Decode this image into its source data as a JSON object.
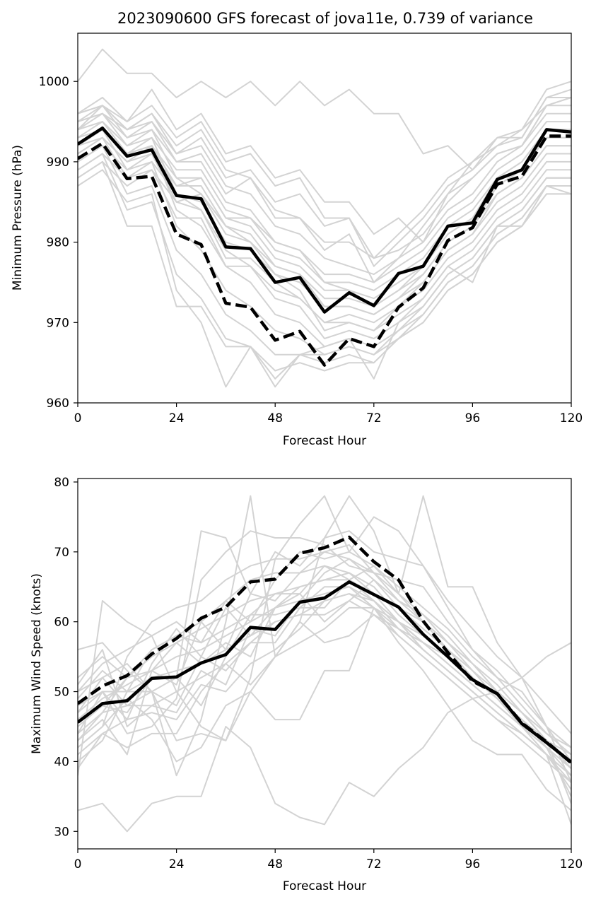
{
  "chart_data": [
    {
      "type": "line",
      "title": "2023090600 GFS forecast of jova11e, 0.739 of variance",
      "xlabel": "Forecast Hour",
      "ylabel": "Minimum Pressure (hPa)",
      "xlim": [
        0,
        120
      ],
      "ylim": [
        960,
        1006
      ],
      "xticks": [
        0,
        24,
        48,
        72,
        96,
        120
      ],
      "yticks": [
        960,
        970,
        980,
        990,
        1000
      ],
      "x": [
        0,
        6,
        12,
        18,
        24,
        30,
        36,
        42,
        48,
        54,
        60,
        66,
        72,
        78,
        84,
        90,
        96,
        102,
        108,
        114,
        120
      ],
      "ensemble_color": "#d3d3d3",
      "ensemble_members": [
        [
          1000,
          1004,
          1001,
          1001,
          998,
          1000,
          998,
          1000,
          997,
          1000,
          997,
          999,
          996,
          996,
          991,
          992,
          989,
          993,
          994,
          999,
          1000
        ],
        [
          996,
          998,
          995,
          999,
          994,
          996,
          991,
          992,
          988,
          989,
          985,
          985,
          981,
          983,
          980,
          986,
          990,
          993,
          993,
          998,
          998
        ],
        [
          995,
          997,
          994,
          996,
          992,
          994,
          989,
          988,
          984,
          983,
          980,
          980,
          978,
          979,
          981,
          985,
          988,
          991,
          992,
          997,
          997
        ],
        [
          994,
          996,
          993,
          995,
          991,
          992,
          987,
          986,
          982,
          981,
          978,
          977,
          976,
          978,
          980,
          984,
          986,
          990,
          992,
          996,
          996
        ],
        [
          993,
          995,
          992,
          994,
          990,
          990,
          985,
          984,
          980,
          979,
          976,
          976,
          975,
          977,
          979,
          983,
          985,
          989,
          991,
          995,
          995
        ],
        [
          992,
          994,
          991,
          993,
          989,
          989,
          984,
          983,
          979,
          978,
          975,
          975,
          974,
          976,
          978,
          982,
          984,
          988,
          990,
          994,
          994
        ],
        [
          991,
          993,
          990,
          992,
          988,
          988,
          983,
          982,
          978,
          977,
          974,
          974,
          973,
          975,
          977,
          981,
          983,
          987,
          989,
          993,
          993
        ],
        [
          990,
          992,
          989,
          991,
          987,
          987,
          982,
          981,
          977,
          976,
          973,
          973,
          972,
          974,
          976,
          980,
          982,
          986,
          988,
          992,
          992
        ],
        [
          989,
          991,
          988,
          990,
          986,
          985,
          980,
          979,
          976,
          975,
          972,
          972,
          971,
          973,
          975,
          979,
          981,
          985,
          987,
          991,
          991
        ],
        [
          988,
          990,
          987,
          989,
          985,
          984,
          978,
          978,
          975,
          973,
          970,
          971,
          970,
          972,
          974,
          978,
          980,
          984,
          986,
          990,
          990
        ],
        [
          996,
          997,
          993,
          994,
          988,
          986,
          982,
          980,
          976,
          974,
          969,
          970,
          969,
          971,
          973,
          977,
          979,
          983,
          985,
          989,
          989
        ],
        [
          995,
          996,
          992,
          993,
          986,
          984,
          979,
          977,
          973,
          972,
          968,
          969,
          968,
          970,
          972,
          976,
          978,
          982,
          984,
          988,
          988
        ],
        [
          994,
          995,
          991,
          992,
          984,
          982,
          977,
          975,
          971,
          970,
          967,
          968,
          967,
          969,
          971,
          975,
          977,
          981,
          983,
          987,
          987
        ],
        [
          993,
          994,
          989,
          990,
          982,
          979,
          974,
          972,
          969,
          968,
          966,
          967,
          966,
          968,
          970,
          974,
          976,
          980,
          982,
          986,
          986
        ],
        [
          990,
          992,
          986,
          987,
          979,
          976,
          971,
          969,
          966,
          966,
          965,
          966,
          965,
          968,
          970,
          974,
          976,
          980,
          982,
          986,
          986
        ],
        [
          989,
          991,
          984,
          985,
          976,
          973,
          968,
          967,
          964,
          965,
          964,
          965,
          965,
          968,
          971,
          975,
          977,
          981,
          983,
          987,
          987
        ],
        [
          988,
          990,
          982,
          982,
          972,
          972,
          967,
          967,
          963,
          966,
          966,
          967,
          966,
          969,
          972,
          976,
          978,
          982,
          984,
          988,
          988
        ],
        [
          987,
          989,
          985,
          986,
          974,
          970,
          962,
          967,
          962,
          966,
          967,
          968,
          963,
          970,
          973,
          977,
          975,
          982,
          982,
          987,
          986
        ],
        [
          996,
          997,
          994,
          995,
          990,
          991,
          986,
          988,
          983,
          983,
          979,
          981,
          975,
          978,
          982,
          986,
          988,
          991,
          992,
          997,
          998
        ],
        [
          995,
          996,
          994,
          996,
          991,
          993,
          988,
          989,
          985,
          986,
          982,
          983,
          977,
          980,
          983,
          987,
          989,
          992,
          993,
          998,
          999
        ],
        [
          994,
          997,
          995,
          997,
          993,
          995,
          990,
          991,
          987,
          988,
          983,
          983,
          978,
          981,
          984,
          988,
          990,
          992,
          994,
          997,
          998
        ],
        [
          992,
          994,
          991,
          992,
          987,
          988,
          983,
          983,
          980,
          979,
          975,
          974,
          972,
          974,
          977,
          981,
          983,
          988,
          990,
          994,
          994
        ],
        [
          991,
          993,
          988,
          989,
          983,
          983,
          977,
          977,
          974,
          973,
          970,
          970,
          969,
          972,
          975,
          979,
          981,
          986,
          988,
          992,
          992
        ],
        [
          992,
          993,
          990,
          991,
          985,
          986,
          981,
          980,
          977,
          976,
          972,
          972,
          971,
          973,
          976,
          980,
          982,
          987,
          989,
          993,
          993
        ]
      ],
      "series": [
        {
          "name": "",
          "style": "solid",
          "values": [
            992.2,
            994.2,
            990.7,
            991.5,
            985.8,
            985.4,
            979.4,
            979.2,
            975.0,
            975.6,
            971.3,
            973.7,
            972.1,
            976.1,
            977.0,
            982.0,
            982.4,
            987.8,
            989.0,
            994.0,
            993.7
          ]
        },
        {
          "name": "",
          "style": "dashed",
          "values": [
            990.4,
            992.3,
            987.9,
            988.2,
            981.0,
            979.7,
            972.4,
            971.9,
            967.8,
            968.9,
            964.7,
            968.0,
            967.0,
            971.9,
            974.3,
            980.2,
            981.8,
            987.2,
            988.2,
            993.2,
            993.2
          ]
        }
      ]
    },
    {
      "type": "line",
      "title": "",
      "xlabel": "Forecast Hour",
      "ylabel": "Maximum Wind Speed (knots)",
      "xlim": [
        0,
        120
      ],
      "ylim": [
        27.5,
        80.5
      ],
      "xticks": [
        0,
        24,
        48,
        72,
        96,
        120
      ],
      "yticks": [
        30,
        40,
        50,
        60,
        70,
        80
      ],
      "x": [
        0,
        6,
        12,
        18,
        24,
        30,
        36,
        42,
        48,
        54,
        60,
        66,
        72,
        78,
        84,
        90,
        96,
        102,
        108,
        114,
        120
      ],
      "ensemble_color": "#d3d3d3",
      "ensemble_members": [
        [
          33,
          34,
          30,
          34,
          35,
          35,
          45,
          42,
          34,
          32,
          31,
          37,
          35,
          39,
          42,
          47,
          49,
          50,
          52,
          55,
          57
        ],
        [
          38,
          63,
          60,
          58,
          50,
          45,
          43,
          50,
          46,
          46,
          53,
          53,
          62,
          57,
          53,
          48,
          43,
          41,
          41,
          36,
          33
        ],
        [
          56,
          57,
          53,
          50,
          38,
          46,
          60,
          78,
          55,
          60,
          72,
          78,
          73,
          64,
          78,
          65,
          65,
          57,
          52,
          45,
          37
        ],
        [
          50,
          52,
          48,
          50,
          43,
          44,
          43,
          52,
          69,
          74,
          78,
          70,
          75,
          73,
          68,
          62,
          56,
          52,
          50,
          45,
          40
        ],
        [
          45,
          48,
          47,
          52,
          52,
          73,
          72,
          64,
          70,
          68,
          72,
          73,
          70,
          69,
          68,
          63,
          59,
          55,
          52,
          48,
          44
        ],
        [
          48,
          50,
          44,
          45,
          49,
          66,
          70,
          73,
          72,
          72,
          71,
          68,
          67,
          66,
          65,
          60,
          56,
          53,
          49,
          45,
          42
        ],
        [
          42,
          45,
          55,
          60,
          62,
          63,
          66,
          68,
          69,
          69,
          70,
          69,
          67,
          63,
          60,
          57,
          54,
          51,
          47,
          44,
          41
        ],
        [
          40,
          43,
          50,
          56,
          58,
          60,
          63,
          66,
          67,
          67,
          68,
          67,
          65,
          61,
          58,
          55,
          52,
          49,
          46,
          43,
          40
        ],
        [
          44,
          47,
          52,
          55,
          57,
          59,
          61,
          63,
          64,
          65,
          66,
          66,
          64,
          60,
          57,
          54,
          51,
          48,
          45,
          42,
          39
        ],
        [
          46,
          49,
          51,
          53,
          55,
          56,
          58,
          60,
          62,
          63,
          64,
          65,
          63,
          59,
          56,
          53,
          50,
          47,
          44,
          41,
          38
        ],
        [
          47,
          50,
          50,
          52,
          53,
          54,
          56,
          58,
          60,
          61,
          63,
          64,
          62,
          58,
          55,
          52,
          49,
          46,
          43,
          40,
          37
        ],
        [
          52,
          55,
          52,
          56,
          58,
          57,
          59,
          61,
          61,
          62,
          62,
          66,
          63,
          60,
          57,
          54,
          51,
          48,
          45,
          42,
          38
        ],
        [
          51,
          56,
          45,
          48,
          50,
          52,
          54,
          57,
          57,
          62,
          65,
          65,
          62,
          59,
          56,
          53,
          50,
          47,
          44,
          41,
          36
        ],
        [
          43,
          46,
          41,
          53,
          57,
          54,
          57,
          55,
          62,
          65,
          66,
          67,
          64,
          62,
          60,
          56,
          53,
          49,
          46,
          42,
          35
        ],
        [
          49,
          53,
          50,
          50,
          52,
          48,
          55,
          61,
          64,
          64,
          60,
          63,
          66,
          63,
          61,
          58,
          54,
          50,
          47,
          43,
          34
        ],
        [
          41,
          44,
          42,
          44,
          44,
          50,
          54,
          51,
          55,
          60,
          57,
          58,
          61,
          59,
          57,
          55,
          52,
          49,
          45,
          41,
          31
        ],
        [
          50,
          54,
          56,
          58,
          60,
          57,
          63,
          60,
          66,
          70,
          69,
          70,
          68,
          65,
          62,
          59,
          55,
          52,
          48,
          44,
          42
        ],
        [
          46,
          48,
          52,
          53,
          51,
          60,
          56,
          64,
          63,
          67,
          70,
          71,
          67,
          64,
          60,
          57,
          54,
          50,
          47,
          43,
          40
        ],
        [
          43,
          47,
          48,
          48,
          47,
          53,
          51,
          59,
          58,
          63,
          67,
          69,
          66,
          62,
          59,
          56,
          52,
          49,
          46,
          42,
          39
        ],
        [
          39,
          44,
          46,
          47,
          46,
          51,
          50,
          54,
          56,
          59,
          63,
          64,
          63,
          60,
          56,
          53,
          50,
          47,
          44,
          41,
          38
        ],
        [
          44,
          50,
          46,
          54,
          59,
          55,
          62,
          58,
          62,
          64,
          68,
          66,
          68,
          64,
          61,
          57,
          53,
          50,
          47,
          43,
          41
        ],
        [
          42,
          45,
          49,
          46,
          40,
          42,
          48,
          50,
          55,
          57,
          59,
          62,
          62,
          60,
          58,
          55,
          52,
          49,
          46,
          43,
          39
        ],
        [
          47,
          52,
          54,
          50,
          48,
          55,
          53,
          57,
          60,
          61,
          61,
          63,
          61,
          58,
          55,
          52,
          49,
          46,
          44,
          41,
          37
        ]
      ],
      "series": [
        {
          "name": "",
          "style": "solid",
          "values": [
            45.6,
            48.3,
            48.7,
            51.9,
            52.1,
            54.1,
            55.3,
            59.2,
            58.9,
            62.8,
            63.4,
            65.7,
            63.9,
            62.1,
            58.2,
            55.0,
            51.7,
            49.7,
            45.4,
            42.7,
            39.9
          ]
        },
        {
          "name": "",
          "style": "dashed",
          "values": [
            48.3,
            50.8,
            52.3,
            55.4,
            57.6,
            60.5,
            62.1,
            65.7,
            66.1,
            69.8,
            70.6,
            72.1,
            68.6,
            66.0,
            60.1,
            55.6,
            51.5,
            49.7,
            45.5,
            42.8,
            39.8
          ]
        }
      ]
    }
  ]
}
